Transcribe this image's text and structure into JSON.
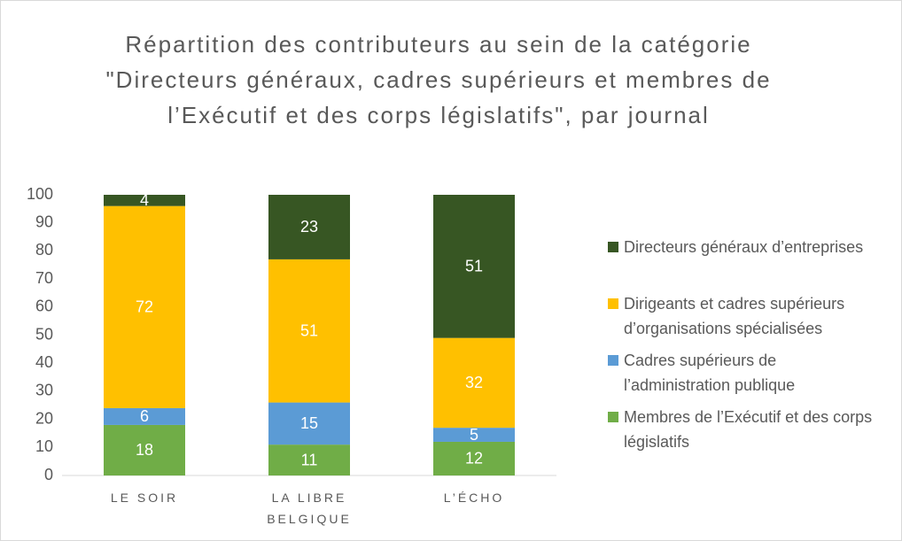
{
  "chart_data": {
    "type": "bar",
    "stacked": true,
    "title": "Répartition des contributeurs au sein de la catégorie \"Directeurs généraux, cadres supérieurs et membres de l’Exécutif  et des corps législatifs\", par journal",
    "categories": [
      "LE SOIR",
      "LA LIBRE BELGIQUE",
      "L’ÉCHO"
    ],
    "series": [
      {
        "name": "Membres de l’Exécutif et des corps législatifs",
        "color": "#70ad47",
        "values": [
          18,
          11,
          12
        ]
      },
      {
        "name": "Cadres supérieurs de l’administration publique",
        "color": "#5b9bd5",
        "values": [
          6,
          15,
          5
        ]
      },
      {
        "name": "Dirigeants et cadres supérieurs d’organisations spécialisées",
        "color": "#ffc000",
        "values": [
          72,
          51,
          32
        ]
      },
      {
        "name": "Directeurs généraux d’entreprises",
        "color": "#375623",
        "values": [
          4,
          23,
          51
        ]
      }
    ],
    "ylim": [
      0,
      100
    ],
    "yticks": [
      0,
      10,
      20,
      30,
      40,
      50,
      60,
      70,
      80,
      90,
      100
    ]
  }
}
